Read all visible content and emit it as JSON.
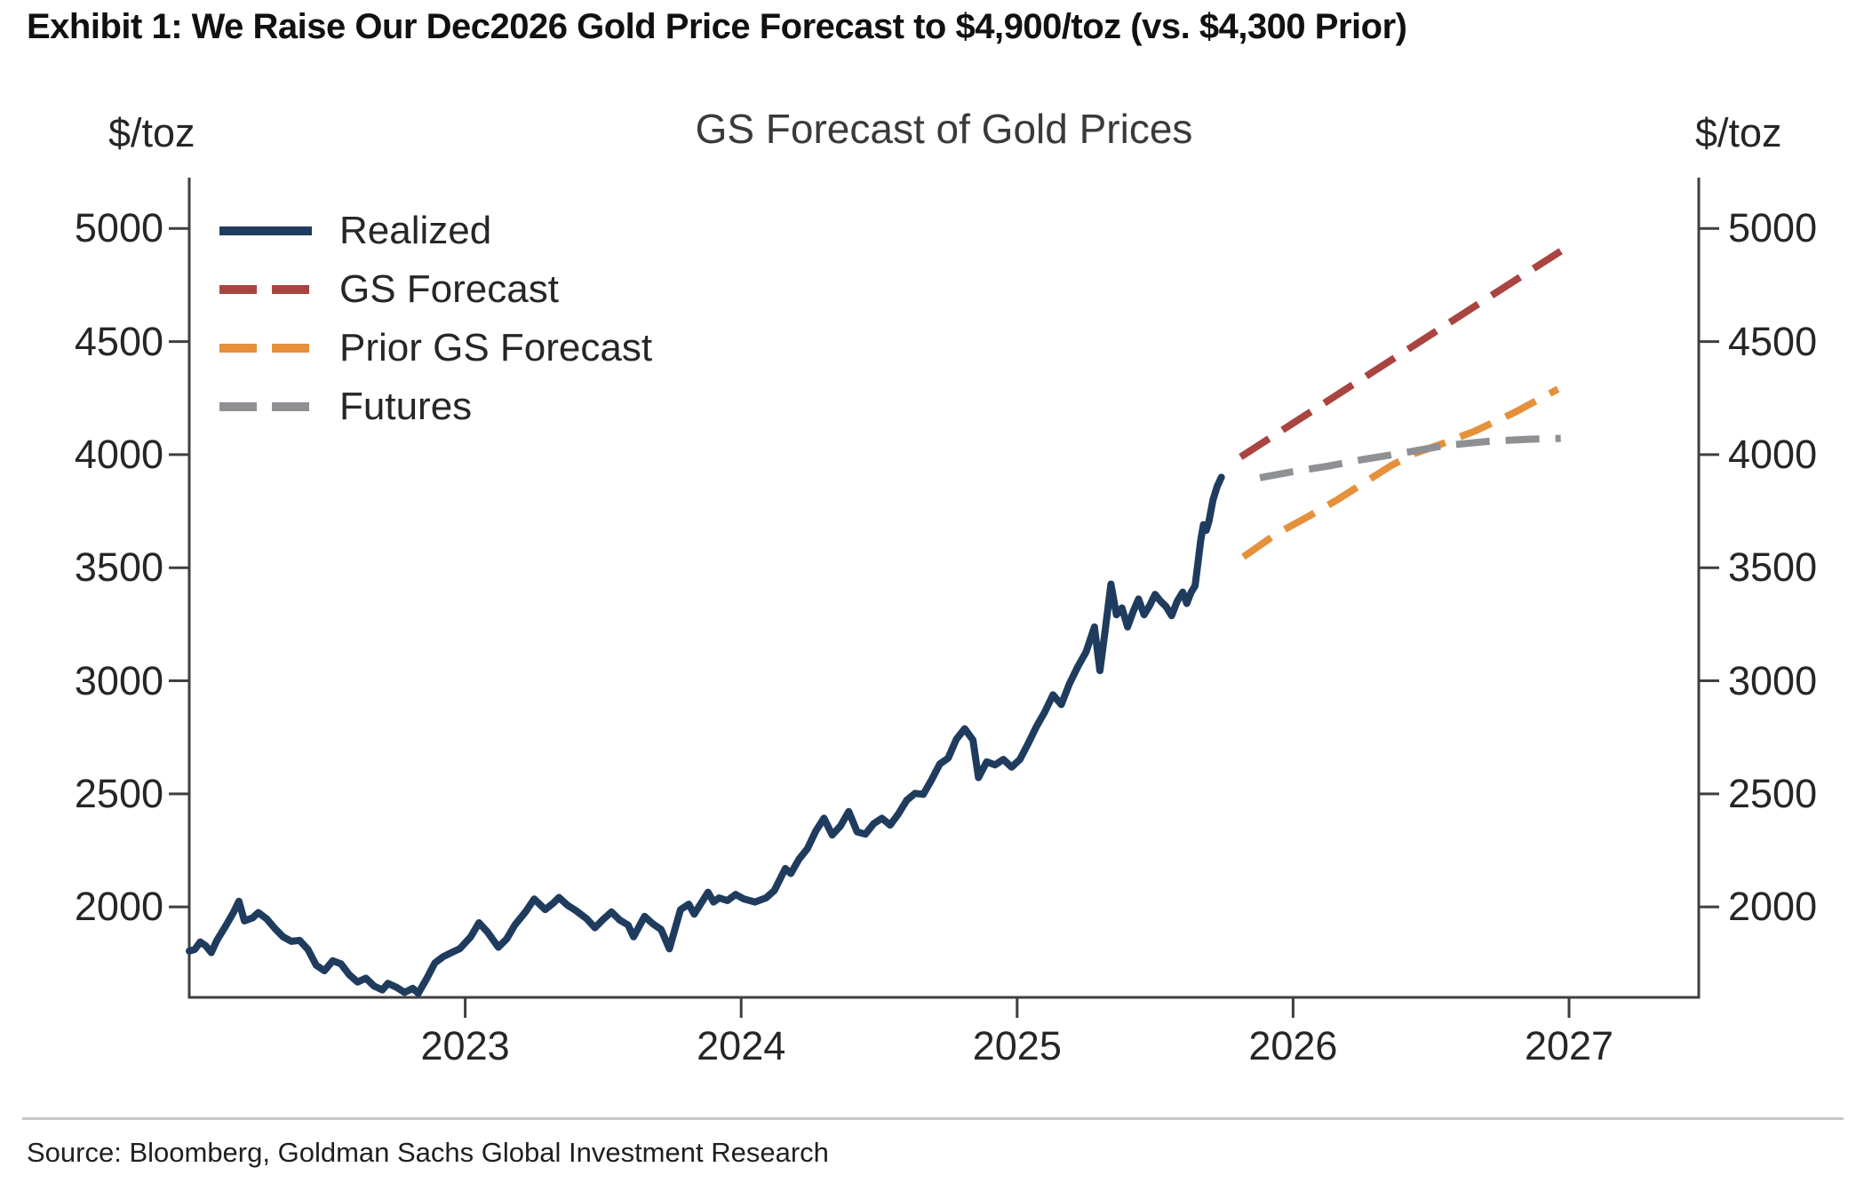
{
  "page": {
    "exhibit_title": "Exhibit 1: We Raise Our Dec2026 Gold Price Forecast to $4,900/toz (vs. $4,300 Prior)",
    "source": "Source: Bloomberg, Goldman Sachs Global Investment Research"
  },
  "palette": {
    "realized": "#1f3c5f",
    "gs_forecast": "#a94441",
    "prior_gs_forecast": "#e5913c",
    "futures": "#8e9093",
    "axis": "#3f3f3f",
    "text": "#262626",
    "divider": "#c8c8c8"
  },
  "chart_data": {
    "type": "line",
    "title": "GS Forecast of Gold Prices",
    "left_axis_label": "$/toz",
    "right_axis_label": "$/toz",
    "x_ticks": [
      2023,
      2024,
      2025,
      2026,
      2027
    ],
    "y_ticks": [
      5000,
      4500,
      4000,
      3500,
      3000,
      2500,
      2000
    ],
    "xlim": [
      2022.0,
      2027.47
    ],
    "ylim": [
      1600,
      5225
    ],
    "grid": false,
    "legend_position": "upper-left",
    "series": [
      {
        "name": "Realized",
        "color": "#1f3c5f",
        "style": "solid",
        "points": [
          [
            2022.0,
            1805
          ],
          [
            2022.02,
            1812
          ],
          [
            2022.04,
            1845
          ],
          [
            2022.06,
            1828
          ],
          [
            2022.08,
            1798
          ],
          [
            2022.1,
            1852
          ],
          [
            2022.13,
            1912
          ],
          [
            2022.16,
            1975
          ],
          [
            2022.18,
            2025
          ],
          [
            2022.2,
            1938
          ],
          [
            2022.23,
            1952
          ],
          [
            2022.25,
            1975
          ],
          [
            2022.28,
            1948
          ],
          [
            2022.31,
            1905
          ],
          [
            2022.34,
            1868
          ],
          [
            2022.37,
            1848
          ],
          [
            2022.4,
            1852
          ],
          [
            2022.43,
            1812
          ],
          [
            2022.46,
            1742
          ],
          [
            2022.49,
            1718
          ],
          [
            2022.52,
            1762
          ],
          [
            2022.55,
            1748
          ],
          [
            2022.58,
            1700
          ],
          [
            2022.61,
            1668
          ],
          [
            2022.64,
            1685
          ],
          [
            2022.67,
            1650
          ],
          [
            2022.7,
            1633
          ],
          [
            2022.72,
            1662
          ],
          [
            2022.75,
            1645
          ],
          [
            2022.78,
            1622
          ],
          [
            2022.81,
            1640
          ],
          [
            2022.83,
            1618
          ],
          [
            2022.86,
            1682
          ],
          [
            2022.89,
            1752
          ],
          [
            2022.92,
            1780
          ],
          [
            2022.95,
            1798
          ],
          [
            2022.98,
            1815
          ],
          [
            2023.02,
            1868
          ],
          [
            2023.05,
            1930
          ],
          [
            2023.08,
            1890
          ],
          [
            2023.12,
            1822
          ],
          [
            2023.15,
            1858
          ],
          [
            2023.18,
            1920
          ],
          [
            2023.22,
            1980
          ],
          [
            2023.25,
            2035
          ],
          [
            2023.29,
            1988
          ],
          [
            2023.32,
            2018
          ],
          [
            2023.34,
            2042
          ],
          [
            2023.37,
            2008
          ],
          [
            2023.4,
            1985
          ],
          [
            2023.44,
            1948
          ],
          [
            2023.47,
            1908
          ],
          [
            2023.5,
            1945
          ],
          [
            2023.53,
            1978
          ],
          [
            2023.56,
            1942
          ],
          [
            2023.59,
            1920
          ],
          [
            2023.61,
            1868
          ],
          [
            2023.65,
            1958
          ],
          [
            2023.68,
            1925
          ],
          [
            2023.71,
            1900
          ],
          [
            2023.74,
            1815
          ],
          [
            2023.78,
            1988
          ],
          [
            2023.81,
            2012
          ],
          [
            2023.83,
            1968
          ],
          [
            2023.88,
            2065
          ],
          [
            2023.9,
            2022
          ],
          [
            2023.92,
            2040
          ],
          [
            2023.95,
            2028
          ],
          [
            2023.98,
            2055
          ],
          [
            2024.01,
            2035
          ],
          [
            2024.05,
            2022
          ],
          [
            2024.09,
            2040
          ],
          [
            2024.12,
            2072
          ],
          [
            2024.16,
            2170
          ],
          [
            2024.18,
            2148
          ],
          [
            2024.21,
            2212
          ],
          [
            2024.24,
            2258
          ],
          [
            2024.27,
            2335
          ],
          [
            2024.3,
            2392
          ],
          [
            2024.33,
            2318
          ],
          [
            2024.36,
            2358
          ],
          [
            2024.39,
            2422
          ],
          [
            2024.42,
            2332
          ],
          [
            2024.45,
            2322
          ],
          [
            2024.48,
            2368
          ],
          [
            2024.51,
            2392
          ],
          [
            2024.54,
            2362
          ],
          [
            2024.57,
            2412
          ],
          [
            2024.6,
            2472
          ],
          [
            2024.63,
            2502
          ],
          [
            2024.66,
            2498
          ],
          [
            2024.69,
            2562
          ],
          [
            2024.72,
            2632
          ],
          [
            2024.75,
            2658
          ],
          [
            2024.78,
            2742
          ],
          [
            2024.81,
            2788
          ],
          [
            2024.84,
            2738
          ],
          [
            2024.86,
            2572
          ],
          [
            2024.89,
            2642
          ],
          [
            2024.92,
            2628
          ],
          [
            2024.95,
            2652
          ],
          [
            2024.98,
            2618
          ],
          [
            2025.01,
            2652
          ],
          [
            2025.04,
            2722
          ],
          [
            2025.07,
            2798
          ],
          [
            2025.1,
            2862
          ],
          [
            2025.13,
            2938
          ],
          [
            2025.16,
            2895
          ],
          [
            2025.19,
            2988
          ],
          [
            2025.22,
            3062
          ],
          [
            2025.25,
            3128
          ],
          [
            2025.28,
            3238
          ],
          [
            2025.3,
            3045
          ],
          [
            2025.32,
            3232
          ],
          [
            2025.34,
            3428
          ],
          [
            2025.36,
            3292
          ],
          [
            2025.38,
            3322
          ],
          [
            2025.4,
            3238
          ],
          [
            2025.42,
            3305
          ],
          [
            2025.44,
            3362
          ],
          [
            2025.46,
            3292
          ],
          [
            2025.48,
            3332
          ],
          [
            2025.5,
            3382
          ],
          [
            2025.52,
            3352
          ],
          [
            2025.54,
            3328
          ],
          [
            2025.56,
            3288
          ],
          [
            2025.58,
            3352
          ],
          [
            2025.6,
            3392
          ],
          [
            2025.615,
            3342
          ],
          [
            2025.63,
            3390
          ],
          [
            2025.645,
            3420
          ],
          [
            2025.655,
            3520
          ],
          [
            2025.665,
            3620
          ],
          [
            2025.675,
            3690
          ],
          [
            2025.685,
            3665
          ],
          [
            2025.695,
            3705
          ],
          [
            2025.71,
            3800
          ],
          [
            2025.725,
            3860
          ],
          [
            2025.74,
            3900
          ]
        ]
      },
      {
        "name": "GS Forecast",
        "color": "#a94441",
        "style": "dashed",
        "points": [
          [
            2025.81,
            3990
          ],
          [
            2026.0,
            4139
          ],
          [
            2026.2,
            4296
          ],
          [
            2026.4,
            4453
          ],
          [
            2026.6,
            4610
          ],
          [
            2026.8,
            4767
          ],
          [
            2026.97,
            4900
          ]
        ]
      },
      {
        "name": "Prior GS Forecast",
        "color": "#e5913c",
        "style": "dashed",
        "points": [
          [
            2025.82,
            3548
          ],
          [
            2025.94,
            3650
          ],
          [
            2026.06,
            3730
          ],
          [
            2026.16,
            3800
          ],
          [
            2026.26,
            3878
          ],
          [
            2026.36,
            3955
          ],
          [
            2026.44,
            4005
          ],
          [
            2026.54,
            4048
          ],
          [
            2026.66,
            4105
          ],
          [
            2026.8,
            4185
          ],
          [
            2026.96,
            4290
          ]
        ]
      },
      {
        "name": "Futures",
        "color": "#8e9093",
        "style": "dashed",
        "points": [
          [
            2025.88,
            3898
          ],
          [
            2026.0,
            3925
          ],
          [
            2026.12,
            3948
          ],
          [
            2026.25,
            3978
          ],
          [
            2026.4,
            4008
          ],
          [
            2026.55,
            4040
          ],
          [
            2026.7,
            4058
          ],
          [
            2026.85,
            4068
          ],
          [
            2026.97,
            4072
          ]
        ]
      }
    ]
  }
}
